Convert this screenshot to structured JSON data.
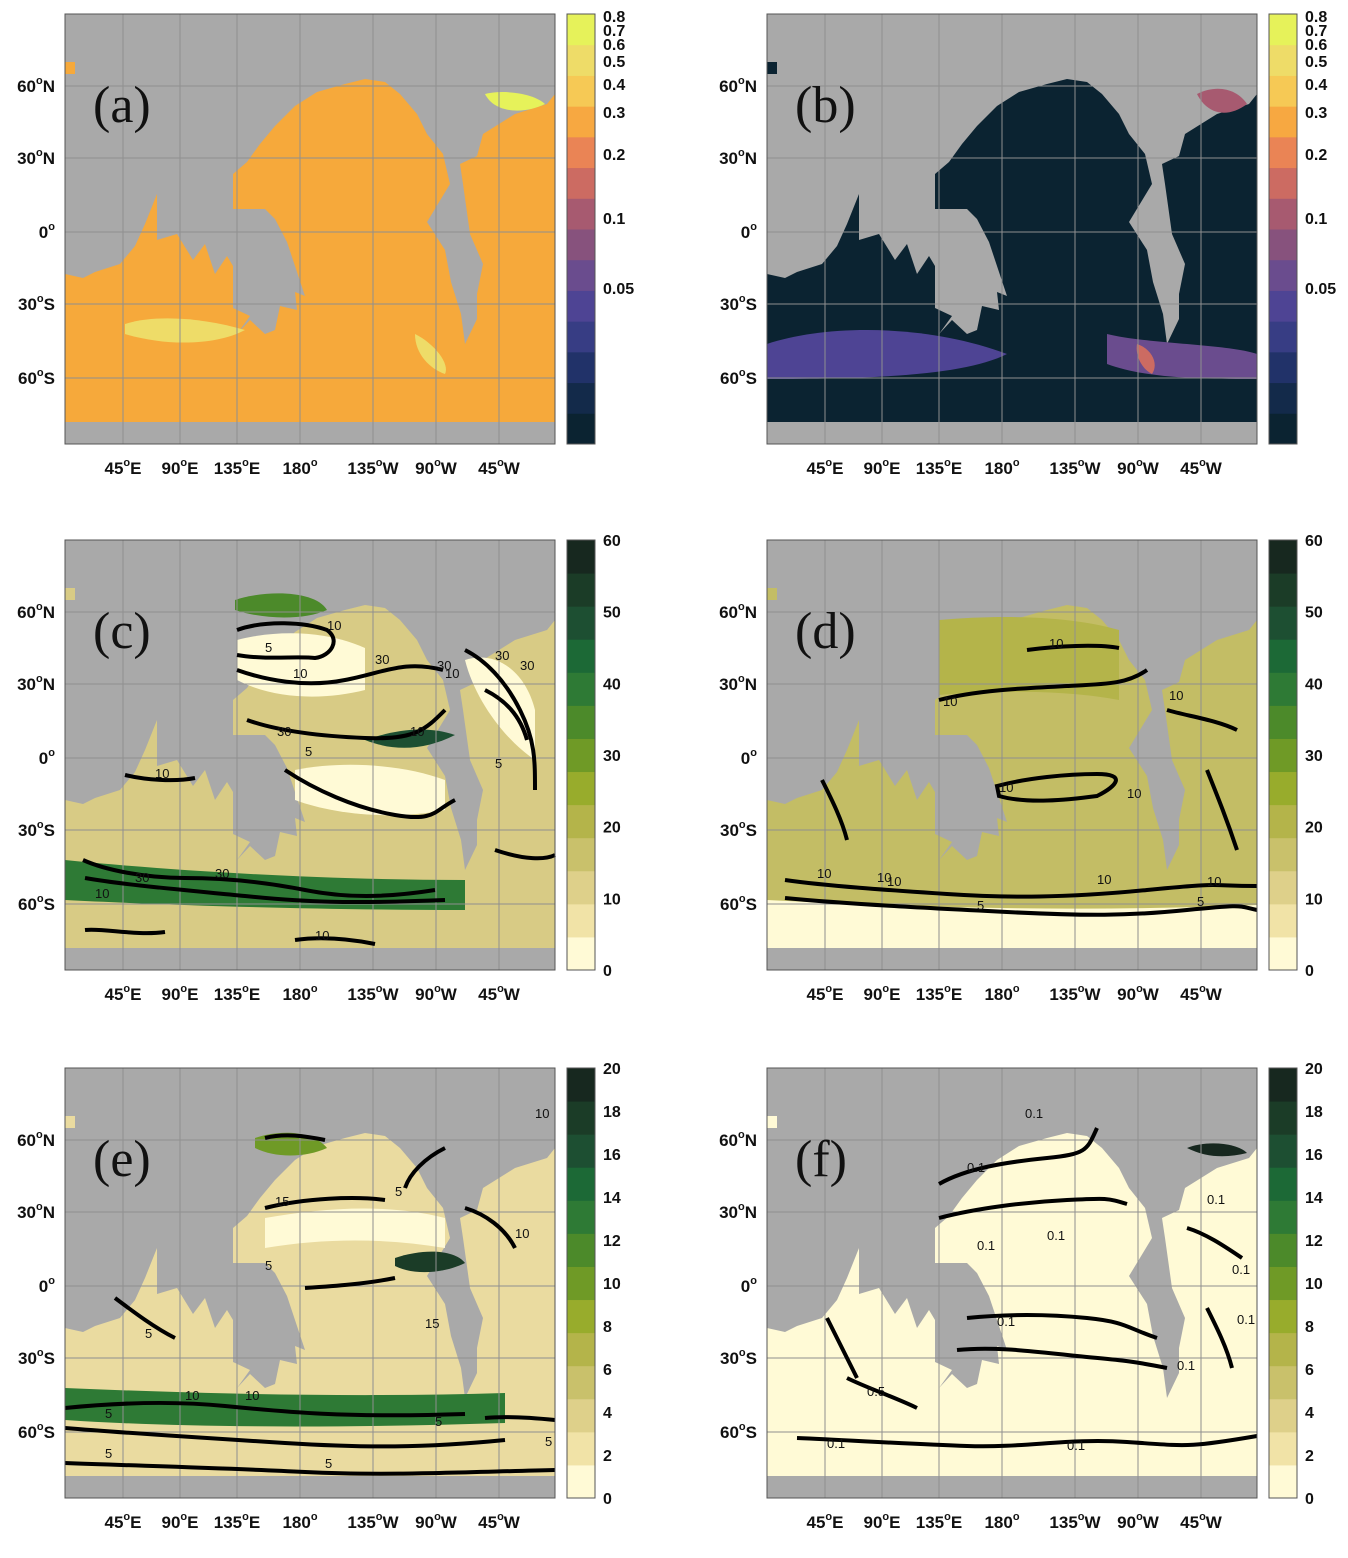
{
  "colors": {
    "land": "#a9a9a9",
    "grid": "#8f8f8f",
    "contour": "#000000",
    "plasma_scale": [
      "#0b2331",
      "#132a4a",
      "#213269",
      "#373d84",
      "#4e4494",
      "#6a4c8e",
      "#87527d",
      "#a75a70",
      "#cc6b62",
      "#ea8455",
      "#f7a841",
      "#f6c955",
      "#eedc68",
      "#e6f25a"
    ],
    "green_scale": [
      "#fffad6",
      "#f1e3a7",
      "#ded08a",
      "#c9c16b",
      "#b4b44a",
      "#98ac2c",
      "#6f9a26",
      "#4c8a2a",
      "#2e7a35",
      "#1c6936",
      "#1d4f32",
      "#1b3c27",
      "#17281f"
    ]
  },
  "axes": {
    "x_ticks": [
      {
        "deg": "45",
        "hemi": "E"
      },
      {
        "deg": "90",
        "hemi": "E"
      },
      {
        "deg": "135",
        "hemi": "E"
      },
      {
        "deg": "180",
        "hemi": ""
      },
      {
        "deg": "135",
        "hemi": "W"
      },
      {
        "deg": "90",
        "hemi": "W"
      },
      {
        "deg": "45",
        "hemi": "W"
      }
    ],
    "y_ticks": [
      {
        "deg": "60",
        "hemi": "N"
      },
      {
        "deg": "30",
        "hemi": "N"
      },
      {
        "deg": "0",
        "hemi": ""
      },
      {
        "deg": "30",
        "hemi": "S"
      },
      {
        "deg": "60",
        "hemi": "S"
      }
    ]
  },
  "panels": [
    {
      "id": "a",
      "label": "(a)",
      "style": "plasma_a",
      "colorbar": {
        "scale": "plasma",
        "ticks": [
          "0.8",
          "0.7",
          "0.6",
          "0.5",
          "0.4",
          "0.3",
          "0.2",
          "0.1",
          "0.05"
        ]
      },
      "contour_labels": []
    },
    {
      "id": "b",
      "label": "(b)",
      "style": "plasma_b",
      "colorbar": {
        "scale": "plasma",
        "ticks": [
          "0.8",
          "0.7",
          "0.6",
          "0.5",
          "0.4",
          "0.3",
          "0.2",
          "0.1",
          "0.05"
        ]
      },
      "contour_labels": []
    },
    {
      "id": "c",
      "label": "(c)",
      "style": "green_c",
      "colorbar": {
        "scale": "green",
        "ticks": [
          "60",
          "50",
          "40",
          "30",
          "20",
          "10",
          "0"
        ]
      },
      "contour_labels": [
        "30",
        "30",
        "5",
        "10",
        "10",
        "30",
        "30",
        "10",
        "10",
        "5",
        "30",
        "30",
        "30",
        "10",
        "5",
        "10",
        "10"
      ]
    },
    {
      "id": "d",
      "label": "(d)",
      "style": "green_d",
      "colorbar": {
        "scale": "green",
        "ticks": [
          "60",
          "50",
          "40",
          "30",
          "20",
          "10",
          "0"
        ]
      },
      "contour_labels": [
        "10",
        "10",
        "10",
        "10",
        "10",
        "10",
        "10",
        "10",
        "10",
        "5",
        "10",
        "5"
      ]
    },
    {
      "id": "e",
      "label": "(e)",
      "style": "green_e",
      "colorbar": {
        "scale": "green",
        "ticks": [
          "20",
          "18",
          "16",
          "14",
          "12",
          "10",
          "8",
          "6",
          "4",
          "2",
          "0"
        ]
      },
      "contour_labels": [
        "15",
        "10",
        "5",
        "5",
        "5",
        "15",
        "10",
        "10",
        "5",
        "5",
        "5",
        "10",
        "5",
        "5"
      ]
    },
    {
      "id": "f",
      "label": "(f)",
      "style": "green_f",
      "colorbar": {
        "scale": "green",
        "ticks": [
          "20",
          "18",
          "16",
          "14",
          "12",
          "10",
          "8",
          "6",
          "4",
          "2",
          "0"
        ]
      },
      "contour_labels": [
        "0.1",
        "0.1",
        "0.1",
        "0.1",
        "0.1",
        "0.1",
        "0.5",
        "0.1",
        "0.1",
        "0.1",
        "0.1",
        "0.1"
      ]
    }
  ]
}
